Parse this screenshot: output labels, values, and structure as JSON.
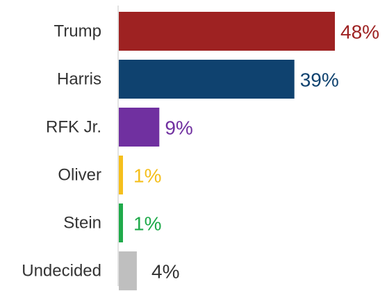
{
  "chart_data": {
    "type": "bar",
    "orientation": "horizontal",
    "categories": [
      "Trump",
      "Harris",
      "RFK Jr.",
      "Oliver",
      "Stein",
      "Undecided"
    ],
    "values": [
      48,
      39,
      9,
      1,
      1,
      4
    ],
    "value_labels": [
      "48%",
      "39%",
      "9%",
      "1%",
      "1%",
      "4%"
    ],
    "unit": "%",
    "colors": [
      "#9e2222",
      "#0f426f",
      "#7030a0",
      "#f5bf1c",
      "#1faa4a",
      "#bfbfbf"
    ],
    "title": "",
    "xlabel": "",
    "ylabel": "",
    "xlim": [
      0,
      48
    ],
    "grid": false,
    "legend": "none"
  }
}
